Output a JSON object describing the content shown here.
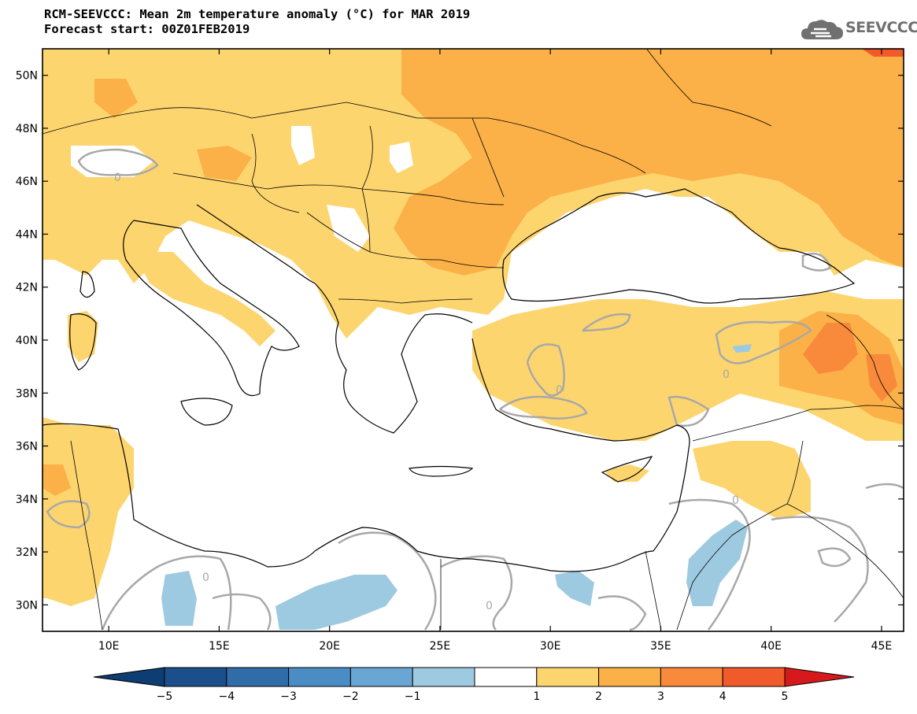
{
  "title": {
    "line1": "RCM-SEEVCCC: Mean 2m temperature anomaly (°C) for MAR 2019",
    "line2": "Forecast start: 00Z01FEB2019"
  },
  "logo": {
    "text": "SEEVCCC",
    "icon": "cloud-icon"
  },
  "map": {
    "lat_range": [
      29,
      51
    ],
    "lon_range": [
      7,
      46
    ],
    "lat_ticks": [
      "50N",
      "48N",
      "46N",
      "44N",
      "42N",
      "40N",
      "38N",
      "36N",
      "34N",
      "32N",
      "30N"
    ],
    "lon_ticks": [
      "10E",
      "15E",
      "20E",
      "25E",
      "30E",
      "35E",
      "40E",
      "45E"
    ],
    "contour_label": "0",
    "colors": {
      "neg5": "#1b4f8c",
      "neg4": "#2f6ca8",
      "neg3": "#4a8cc4",
      "neg2": "#6aa6d4",
      "neg1": "#9ecae1",
      "neutral": "#ffffff",
      "pos1": "#fdd56f",
      "pos2": "#fbb147",
      "pos3": "#f98a3b",
      "pos4": "#f15a2a",
      "pos5": "#d7191c",
      "contour": "#a8a8a8",
      "coast": "#000000"
    }
  },
  "colorbar": {
    "labels": [
      "−5",
      "−4",
      "−3",
      "−2",
      "−1",
      "1",
      "2",
      "3",
      "4",
      "5"
    ],
    "segments": [
      "#1b4f8c",
      "#2f6ca8",
      "#4a8cc4",
      "#6aa6d4",
      "#9ecae1",
      "#ffffff",
      "#fdd56f",
      "#fbb147",
      "#f98a3b",
      "#f15a2a"
    ],
    "left_extend": "#0d3d73",
    "right_extend": "#d7191c"
  }
}
